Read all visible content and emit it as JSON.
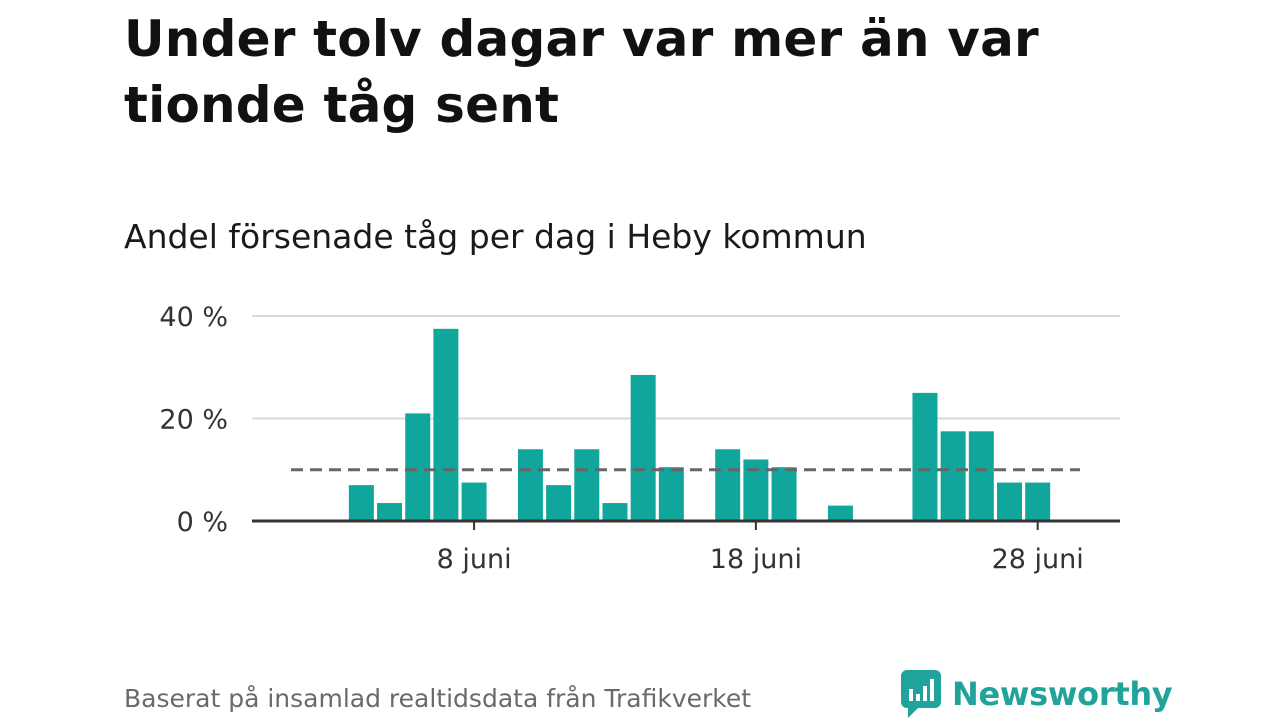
{
  "title": "Under tolv dagar var mer än var tionde tåg sent",
  "subtitle": "Andel försenade tåg per dag i Heby kommun",
  "footer": "Baserat på insamlad realtidsdata från Trafikverket",
  "brand": "Newsworthy",
  "colors": {
    "bar": "#11a69b",
    "brand": "#20a39a",
    "reference_line": "#666666"
  },
  "chart_data": {
    "type": "bar",
    "x": [
      "2 juni",
      "3 juni",
      "4 juni",
      "5 juni",
      "6 juni",
      "7 juni",
      "8 juni",
      "9 juni",
      "10 juni",
      "11 juni",
      "12 juni",
      "13 juni",
      "14 juni",
      "15 juni",
      "16 juni",
      "17 juni",
      "18 juni",
      "19 juni",
      "20 juni",
      "21 juni",
      "22 juni",
      "23 juni",
      "24 juni",
      "25 juni",
      "26 juni",
      "27 juni",
      "28 juni"
    ],
    "values": [
      0,
      0,
      7,
      3.5,
      21,
      37.5,
      7.5,
      0,
      14,
      7,
      14,
      3.5,
      28.5,
      10.5,
      0,
      14,
      12,
      10.5,
      0,
      3,
      0,
      0,
      25,
      17.5,
      17.5,
      7.5,
      7.5
    ],
    "reference_line": 10,
    "ylim": [
      0,
      40
    ],
    "yticks": [
      0,
      20,
      40
    ],
    "ytick_labels": [
      "0 %",
      "20 %",
      "40 %"
    ],
    "xtick_labels": [
      {
        "label": "8 juni",
        "index": 6
      },
      {
        "label": "18 juni",
        "index": 16
      },
      {
        "label": "28 juni",
        "index": 26
      }
    ],
    "grid": true
  }
}
